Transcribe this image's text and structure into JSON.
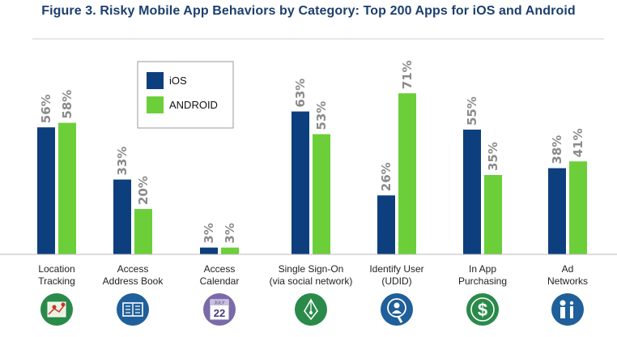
{
  "title": "Figure 3. Risky Mobile App Behaviors by Category: Top 200 Apps for iOS and Android",
  "colors": {
    "ios": "#0d3f7e",
    "android": "#6ccf3a",
    "icon": "#2a8a4a",
    "icon_blue": "#1f5f9a",
    "icon_purple": "#7a6aa8",
    "axis": "#bbbbbb"
  },
  "chart_data": {
    "type": "bar",
    "title": "Figure 3. Risky Mobile App Behaviors by Category: Top 200 Apps for iOS and Android",
    "xlabel": "",
    "ylabel": "",
    "ylim": [
      0,
      100
    ],
    "grid": false,
    "legend_position": "top-left",
    "categories": [
      [
        "Location",
        "Tracking"
      ],
      [
        "Access",
        "Address Book"
      ],
      [
        "Access",
        "Calendar"
      ],
      [
        "Single Sign-On",
        "(via social network)"
      ],
      [
        "Identify User",
        "(UDID)"
      ],
      [
        "In App",
        "Purchasing"
      ],
      [
        "Ad",
        "Networks"
      ]
    ],
    "series": [
      {
        "name": "iOS",
        "values": [
          56,
          33,
          3,
          63,
          26,
          55,
          38
        ],
        "labels": [
          "56%",
          "33%",
          "3%",
          "63%",
          "26%",
          "55%",
          "38%"
        ]
      },
      {
        "name": "ANDROID",
        "values": [
          58,
          20,
          3,
          53,
          71,
          35,
          41
        ],
        "labels": [
          "58%",
          "20%",
          "3%",
          "53%",
          "71%",
          "35%",
          "41%"
        ]
      }
    ],
    "icons": [
      "map-pin-icon",
      "address-book-icon",
      "calendar-icon",
      "pen-nib-icon",
      "user-search-icon",
      "dollar-icon",
      "info-person-icon"
    ],
    "calendar_icon_text": {
      "month": "JULY",
      "day": "22"
    }
  }
}
